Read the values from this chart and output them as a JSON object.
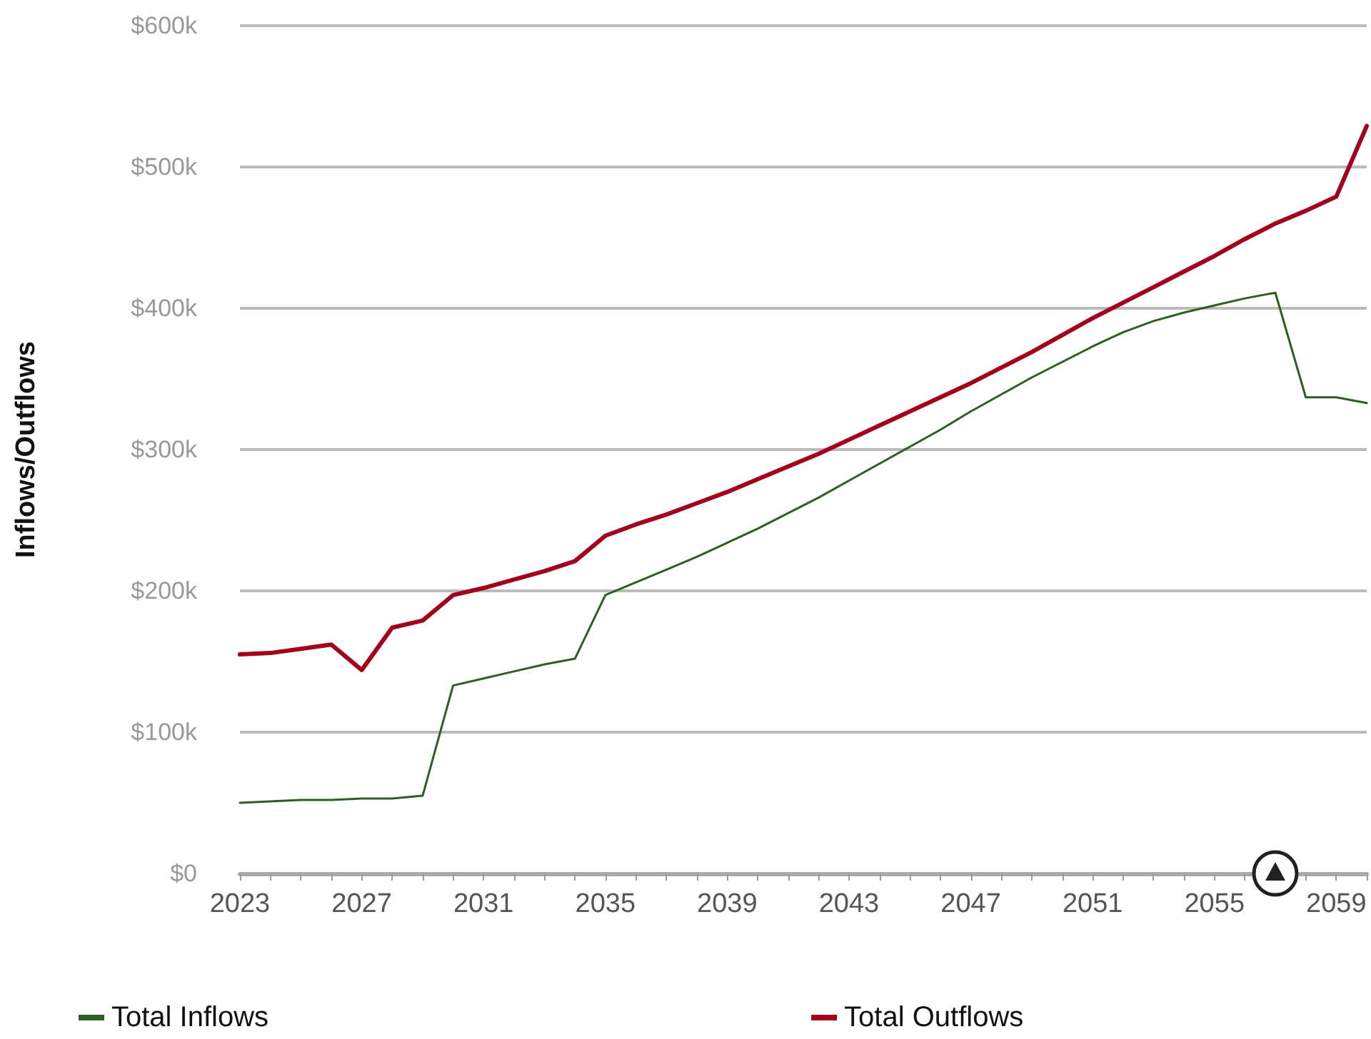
{
  "chart_data": {
    "type": "line",
    "ylabel": "Inflows/Outflows",
    "x": [
      2023,
      2024,
      2025,
      2026,
      2027,
      2028,
      2029,
      2030,
      2031,
      2032,
      2033,
      2034,
      2035,
      2036,
      2037,
      2038,
      2039,
      2040,
      2041,
      2042,
      2043,
      2044,
      2045,
      2046,
      2047,
      2048,
      2049,
      2050,
      2051,
      2052,
      2053,
      2054,
      2055,
      2056,
      2057,
      2058,
      2059,
      2060
    ],
    "series": [
      {
        "name": "Total Inflows",
        "color": "#2f5e22",
        "values": [
          50,
          51,
          52,
          52,
          53,
          53,
          55,
          133,
          138,
          143,
          148,
          152,
          197,
          206,
          215,
          224,
          234,
          244,
          255,
          266,
          278,
          290,
          302,
          314,
          327,
          339,
          351,
          362,
          373,
          383,
          391,
          397,
          402,
          407,
          411,
          337,
          337,
          333
        ]
      },
      {
        "name": "Total Outflows",
        "color": "#a3001b",
        "values": [
          155,
          156,
          159,
          162,
          144,
          174,
          179,
          197,
          202,
          208,
          214,
          221,
          239,
          247,
          254,
          262,
          270,
          279,
          288,
          297,
          307,
          317,
          327,
          337,
          347,
          358,
          369,
          381,
          393,
          404,
          415,
          426,
          437,
          449,
          460,
          469,
          479,
          529
        ]
      }
    ],
    "xlim": [
      2023,
      2060
    ],
    "xticks": [
      2023,
      {
        "value": 2024,
        "label": null
      },
      {
        "value": 2025,
        "label": null
      },
      {
        "value": 2026,
        "label": null
      },
      2027,
      {
        "value": 2028,
        "label": null
      },
      {
        "value": 2029,
        "label": null
      },
      {
        "value": 2030,
        "label": null
      },
      2031,
      {
        "value": 2032,
        "label": null
      },
      {
        "value": 2033,
        "label": null
      },
      {
        "value": 2034,
        "label": null
      },
      2035,
      {
        "value": 2036,
        "label": null
      },
      {
        "value": 2037,
        "label": null
      },
      {
        "value": 2038,
        "label": null
      },
      2039,
      {
        "value": 2040,
        "label": null
      },
      {
        "value": 2041,
        "label": null
      },
      {
        "value": 2042,
        "label": null
      },
      2043,
      {
        "value": 2044,
        "label": null
      },
      {
        "value": 2045,
        "label": null
      },
      {
        "value": 2046,
        "label": null
      },
      2047,
      {
        "value": 2048,
        "label": null
      },
      {
        "value": 2049,
        "label": null
      },
      {
        "value": 2050,
        "label": null
      },
      2051,
      {
        "value": 2052,
        "label": null
      },
      {
        "value": 2053,
        "label": null
      },
      {
        "value": 2054,
        "label": null
      },
      2055,
      {
        "value": 2056,
        "label": null
      },
      {
        "value": 2057,
        "label": null
      },
      {
        "value": 2058,
        "label": null
      },
      2059,
      {
        "value": 2060,
        "label": null
      }
    ],
    "ylim": [
      0,
      600
    ],
    "yticks": [
      {
        "value": 0,
        "label": "$0"
      },
      {
        "value": 100,
        "label": "$100k"
      },
      {
        "value": 200,
        "label": "$200k"
      },
      {
        "value": 300,
        "label": "$300k"
      },
      {
        "value": 400,
        "label": "$400k"
      },
      {
        "value": 500,
        "label": "$500k"
      },
      {
        "value": 600,
        "label": "$600k"
      }
    ],
    "grid": "y",
    "legend": "bottom",
    "marker": "none",
    "line_style": "solid"
  }
}
